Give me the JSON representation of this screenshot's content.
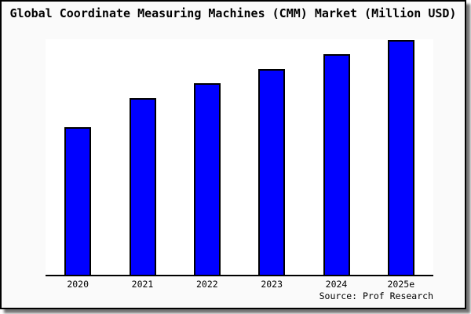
{
  "chart_data": {
    "type": "bar",
    "title": "Global Coordinate Measuring Machines (CMM) Market (Million USD)",
    "categories": [
      "2020",
      "2021",
      "2022",
      "2023",
      "2024",
      "2025e"
    ],
    "values": [
      62.7,
      75.0,
      81.3,
      87.5,
      93.7,
      99.8
    ],
    "unit": "relative bar height, % of plot height (y-axis shows no scale labels)",
    "xlabel": "",
    "ylabel": "",
    "ylim": [
      0,
      100
    ],
    "grid": false,
    "legend": false,
    "y_axis_ticks_visible": false,
    "bar_color": "#0000ff",
    "bar_border_color": "#000000",
    "axis_line_color": "#000000",
    "source": "Source: Prof Research"
  },
  "frame": {
    "background": "#fafafa",
    "plot_background": "#ffffff",
    "border_color": "#000000"
  }
}
